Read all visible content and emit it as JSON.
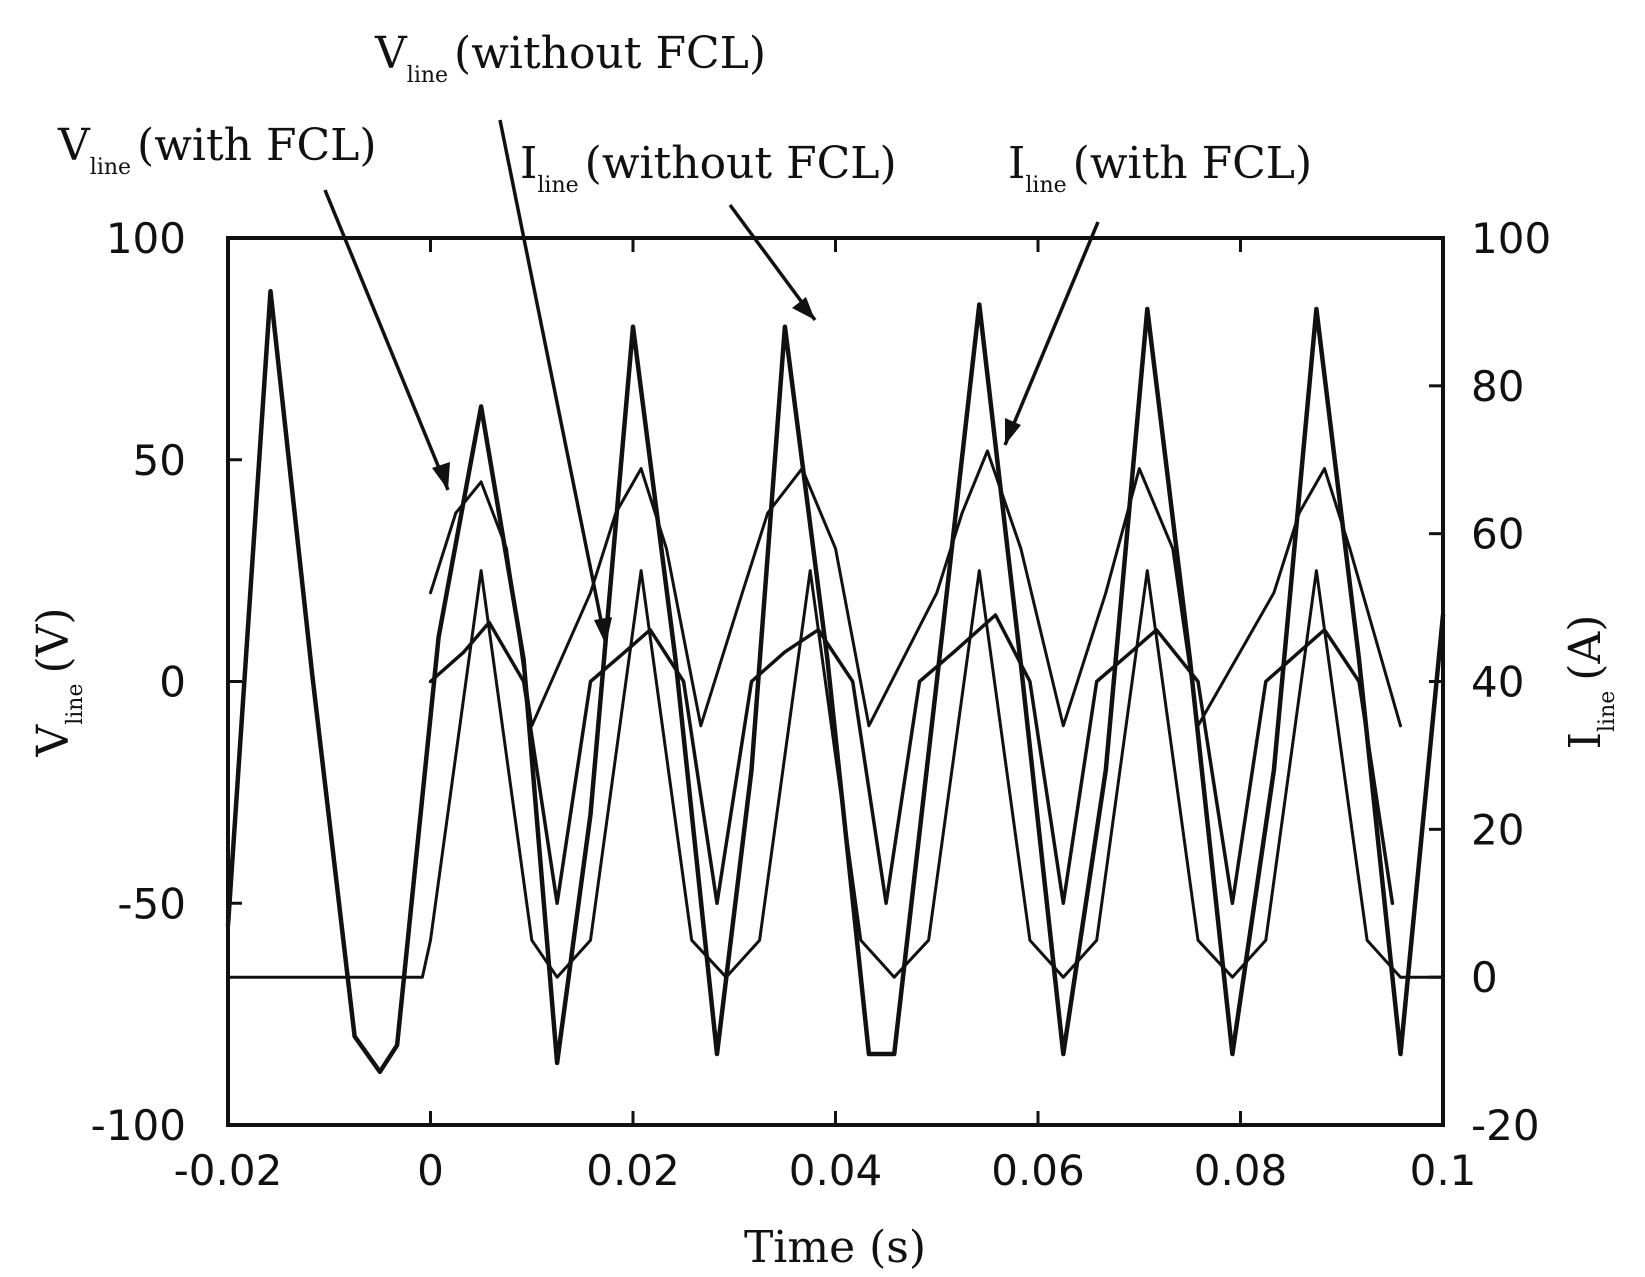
{
  "chart_data": {
    "type": "line",
    "xlabel": "Time (s)",
    "ylabel_left": {
      "main": "V",
      "sub": "line",
      "unit": "(V)"
    },
    "ylabel_right": {
      "main": "I",
      "sub": "line",
      "unit": "(A)"
    },
    "xlim": [
      -0.02,
      0.1
    ],
    "ylim_left": [
      -100,
      100
    ],
    "ylim_right": [
      -20,
      100
    ],
    "x_ticks": [
      "-0.02",
      "0",
      "0.02",
      "0.04",
      "0.06",
      "0.08",
      "0.1"
    ],
    "y_ticks_left": [
      "100",
      "50",
      "0",
      "-50",
      "-100"
    ],
    "y_ticks_right": [
      "100",
      "80",
      "60",
      "40",
      "20",
      "0",
      "-20"
    ],
    "grid": false,
    "annotations": [
      {
        "main": "V",
        "sub": "line",
        "text": "(without FCL)"
      },
      {
        "main": "V",
        "sub": "line",
        "text": "(with FCL)"
      },
      {
        "main": "I",
        "sub": "line",
        "text": "(without FCL)"
      },
      {
        "main": "I",
        "sub": "line",
        "text": "(with FCL)"
      }
    ],
    "series": [
      {
        "name": "V line (without FCL)",
        "axis": "left",
        "x": [
          -0.02,
          -0.0158,
          -0.0117,
          -0.0075,
          -0.005,
          -0.0033,
          0.0008,
          0.005,
          0.0092,
          0.0125,
          0.0158,
          0.02,
          0.0242,
          0.0283,
          0.0317,
          0.035,
          0.0392,
          0.0433,
          0.0458,
          0.05,
          0.0542,
          0.0583,
          0.0625,
          0.0667,
          0.0708,
          0.075,
          0.0792,
          0.0833,
          0.0875,
          0.0917,
          0.0958,
          0.1
        ],
        "y": [
          -55,
          88,
          2,
          -80,
          -88,
          -82,
          10,
          62,
          5,
          -86,
          -30,
          80,
          5,
          -84,
          -20,
          80,
          5,
          -84,
          -84,
          0,
          85,
          4,
          -84,
          -20,
          84,
          5,
          -84,
          -20,
          84,
          5,
          -84,
          15
        ]
      },
      {
        "name": "V line (with FCL)",
        "axis": "left",
        "x": [
          0,
          0.0025,
          0.005,
          0.0075,
          0.01,
          0.0158,
          0.0183,
          0.0208,
          0.0233,
          0.0267,
          0.0308,
          0.0333,
          0.0367,
          0.04,
          0.0433,
          0.05,
          0.0525,
          0.055,
          0.0583,
          0.0625,
          0.0667,
          0.07,
          0.0733,
          0.0758,
          0.0833,
          0.0858,
          0.0883,
          0.0908,
          0.0958
        ],
        "y": [
          20,
          38,
          45,
          30,
          -10,
          20,
          38,
          48,
          30,
          -10,
          20,
          38,
          48,
          30,
          -10,
          20,
          38,
          52,
          30,
          -10,
          20,
          48,
          30,
          -10,
          20,
          38,
          48,
          30,
          -10
        ]
      },
      {
        "name": "I line (without FCL)",
        "axis": "right",
        "x": [
          -0.02,
          -0.0008,
          0.0,
          0.005,
          0.01,
          0.0125,
          0.0158,
          0.0208,
          0.0258,
          0.0292,
          0.0325,
          0.0375,
          0.0425,
          0.0458,
          0.0492,
          0.0542,
          0.0592,
          0.0625,
          0.0658,
          0.0708,
          0.0758,
          0.0792,
          0.0825,
          0.0875,
          0.0925,
          0.0958,
          0.1
        ],
        "y": [
          0,
          0,
          5,
          55,
          5,
          0,
          5,
          55,
          5,
          0,
          5,
          55,
          5,
          0,
          5,
          55,
          5,
          0,
          5,
          55,
          5,
          0,
          5,
          55,
          5,
          0,
          0
        ]
      },
      {
        "name": "I line (with FCL)",
        "axis": "right",
        "x": [
          0,
          0.0033,
          0.0058,
          0.0092,
          0.0125,
          0.0158,
          0.0192,
          0.0217,
          0.025,
          0.0283,
          0.0317,
          0.035,
          0.0383,
          0.0417,
          0.045,
          0.0483,
          0.0517,
          0.0558,
          0.0592,
          0.0625,
          0.0658,
          0.0692,
          0.0717,
          0.0758,
          0.0792,
          0.0825,
          0.0858,
          0.0883,
          0.0917,
          0.095
        ],
        "y": [
          40,
          44,
          48,
          40,
          10,
          40,
          44,
          47,
          40,
          10,
          40,
          44,
          47,
          40,
          10,
          40,
          44,
          49,
          40,
          10,
          40,
          44,
          47,
          40,
          10,
          40,
          44,
          47,
          40,
          10
        ]
      }
    ]
  }
}
